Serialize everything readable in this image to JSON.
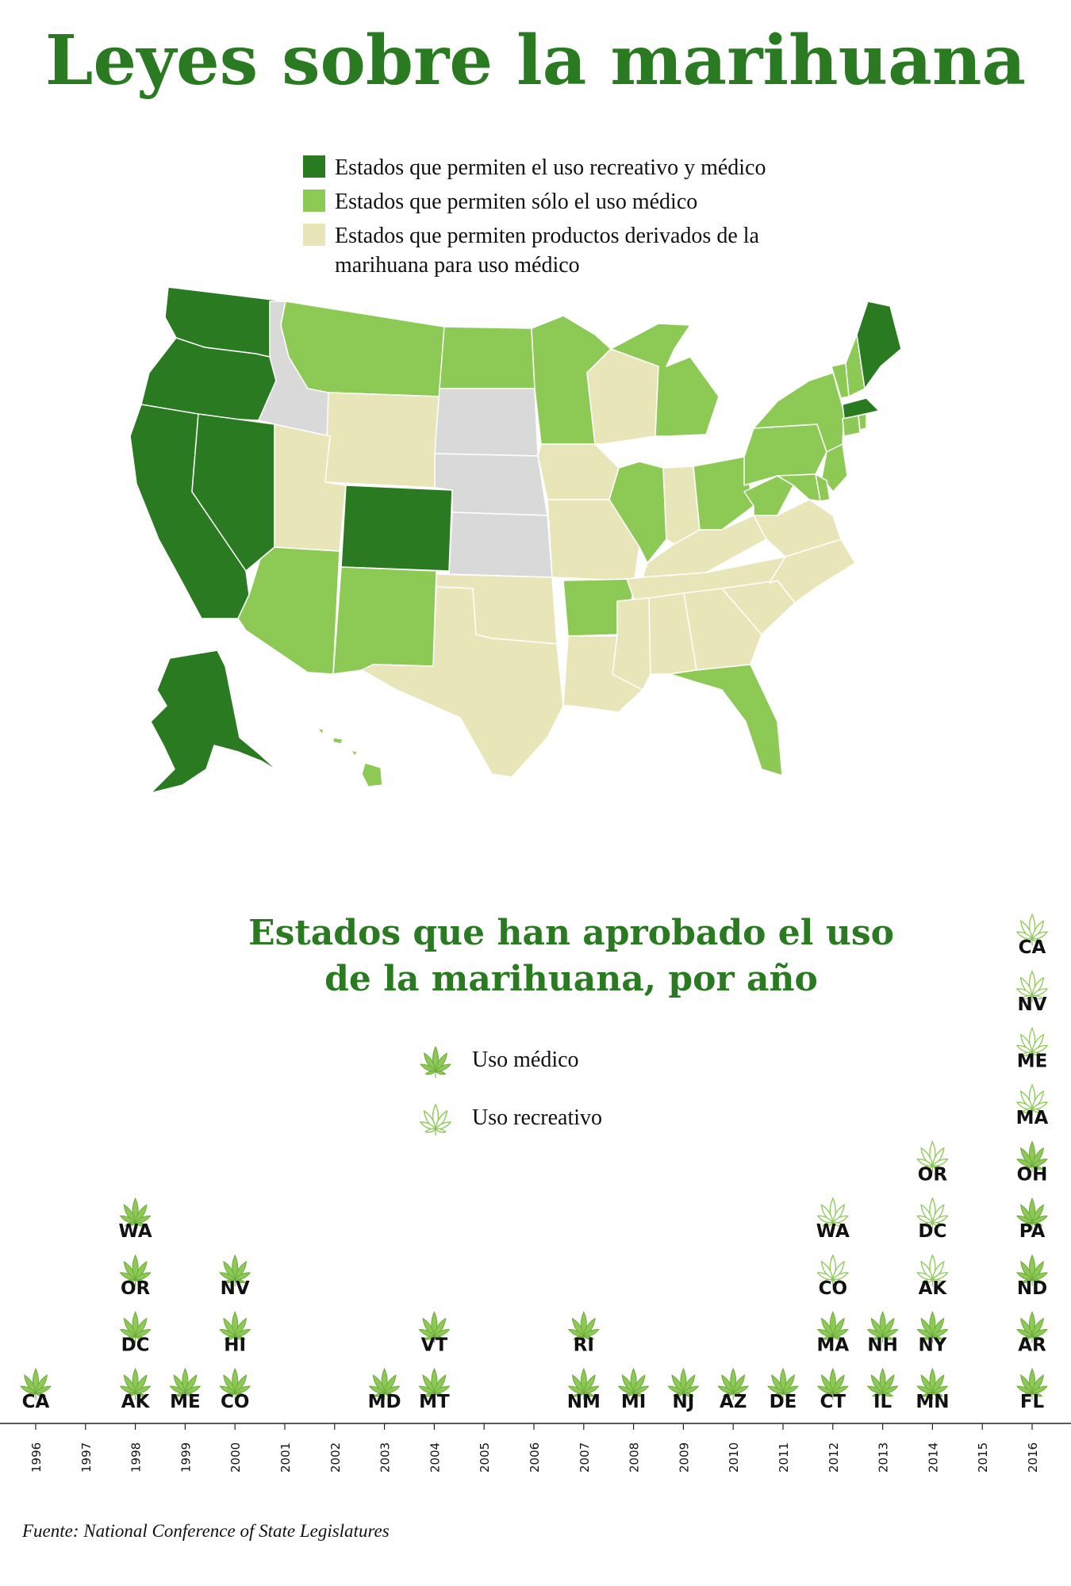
{
  "title": "Leyes sobre la marihuana",
  "colors": {
    "recreational": "#2a7a22",
    "medical": "#8cc955",
    "derived": "#e8e6b8",
    "none": "#d9d9d9",
    "title": "#2a7a22",
    "leaf": "#8cc955"
  },
  "map_legend": [
    {
      "label": "Estados que permiten el uso recreativo y médico",
      "color": "#2a7a22"
    },
    {
      "label": "Estados que permiten sólo el uso médico",
      "color": "#8cc955"
    },
    {
      "label": "Estados que permiten productos derivados de la marihuana para uso médico",
      "color": "#e8e6b8"
    }
  ],
  "map_legend_lines": [
    [
      "Estados que permiten el uso recreativo y médico"
    ],
    [
      "Estados que permiten sólo el uso médico"
    ],
    [
      "Estados que permiten productos derivados de la",
      "marihuana para uso médico"
    ]
  ],
  "chart_title_lines": [
    "Estados que han aprobado el uso",
    "de la marihuana, por año"
  ],
  "timeline_legend": {
    "medical": "Uso médico",
    "recreational": "Uso recreativo"
  },
  "source": "Fuente: National Conference of State Legislatures",
  "chart_data": {
    "type": "table",
    "x": [
      "1996",
      "1997",
      "1998",
      "1999",
      "2000",
      "2001",
      "2002",
      "2003",
      "2004",
      "2005",
      "2006",
      "2007",
      "2008",
      "2009",
      "2010",
      "2011",
      "2012",
      "2013",
      "2014",
      "2015",
      "2016"
    ],
    "series": [
      {
        "name": "Uso médico",
        "values": [
          [
            "CA"
          ],
          [],
          [
            "AK",
            "DC",
            "OR",
            "WA"
          ],
          [
            "ME"
          ],
          [
            "CO",
            "HI",
            "NV"
          ],
          [],
          [],
          [
            "MD"
          ],
          [
            "MT",
            "VT"
          ],
          [],
          [],
          [
            "NM",
            "RI"
          ],
          [
            "MI"
          ],
          [
            "NJ"
          ],
          [
            "AZ"
          ],
          [
            "DE"
          ],
          [
            "CT",
            "MA"
          ],
          [
            "IL",
            "NH"
          ],
          [
            "MN",
            "NY"
          ],
          [],
          [
            "FL",
            "AR",
            "ND",
            "PA",
            "OH"
          ]
        ]
      },
      {
        "name": "Uso recreativo",
        "values": [
          [],
          [],
          [],
          [],
          [],
          [],
          [],
          [],
          [],
          [],
          [],
          [],
          [],
          [],
          [],
          [],
          [
            "CO",
            "WA"
          ],
          [],
          [
            "AK",
            "DC",
            "OR"
          ],
          [],
          [
            "MA",
            "ME",
            "NV",
            "CA"
          ]
        ]
      }
    ]
  }
}
